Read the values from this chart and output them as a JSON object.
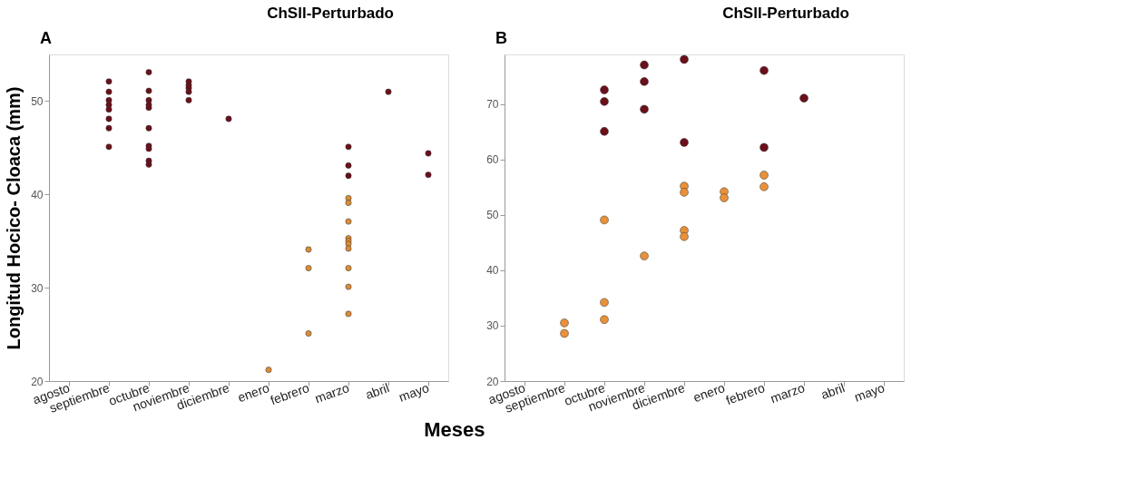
{
  "chart_data": [
    {
      "type": "scatter",
      "title": "ChSll-Perturbado",
      "annotations": [
        "A"
      ],
      "xlabel": "Meses",
      "ylabel": "Longitud Hocico- Cloaca (mm)",
      "categories": [
        "agosto",
        "septiembre",
        "octubre",
        "noviembre",
        "diciembre",
        "enero",
        "febrero",
        "marzo",
        "abril",
        "mayo"
      ],
      "ylim": [
        20,
        55
      ],
      "yticks": [
        20,
        30,
        40,
        50
      ],
      "grid": false,
      "marker": "circle",
      "series": [
        {
          "color": "#6b0f1a",
          "x": [
            "septiembre",
            "septiembre",
            "septiembre",
            "septiembre",
            "septiembre",
            "septiembre",
            "septiembre",
            "septiembre",
            "octubre",
            "octubre",
            "octubre",
            "octubre",
            "octubre",
            "octubre",
            "octubre",
            "octubre",
            "octubre",
            "octubre",
            "noviembre",
            "noviembre",
            "noviembre",
            "noviembre",
            "noviembre",
            "diciembre",
            "marzo",
            "marzo",
            "marzo",
            "abril",
            "mayo",
            "mayo"
          ],
          "values": [
            52.1,
            51.0,
            50.1,
            49.6,
            49.1,
            48.1,
            47.1,
            45.1,
            53.1,
            51.1,
            50.1,
            49.6,
            49.3,
            47.1,
            45.2,
            44.9,
            43.6,
            43.2,
            52.1,
            51.7,
            51.4,
            51.0,
            50.1,
            48.1,
            45.1,
            43.1,
            42.0,
            51.0,
            44.4,
            42.1
          ]
        },
        {
          "color": "#d98c3a",
          "x": [
            "enero",
            "febrero",
            "febrero",
            "febrero",
            "marzo",
            "marzo",
            "marzo",
            "marzo",
            "marzo",
            "marzo",
            "marzo",
            "marzo",
            "marzo",
            "marzo"
          ],
          "values": [
            21.2,
            34.1,
            32.1,
            25.1,
            39.6,
            39.1,
            37.1,
            35.3,
            35.0,
            34.7,
            34.2,
            32.1,
            30.1,
            27.2
          ]
        }
      ]
    },
    {
      "type": "scatter",
      "title": "ChSll-Perturbado",
      "annotations": [
        "B"
      ],
      "categories": [
        "agosto",
        "septiembre",
        "octubre",
        "noviembre",
        "diciembre",
        "enero",
        "febrero",
        "marzo",
        "abril",
        "mayo"
      ],
      "ylim": [
        20,
        79
      ],
      "yticks": [
        20,
        30,
        40,
        50,
        60,
        70
      ],
      "grid": false,
      "marker": "circle",
      "series": [
        {
          "color": "#6b0f1a",
          "x": [
            "octubre",
            "octubre",
            "octubre",
            "noviembre",
            "noviembre",
            "noviembre",
            "diciembre",
            "diciembre",
            "febrero",
            "febrero",
            "marzo"
          ],
          "values": [
            72.6,
            70.5,
            65.1,
            77.1,
            74.1,
            69.1,
            78.1,
            63.1,
            76.1,
            62.2,
            71.1
          ]
        },
        {
          "color": "#e8913a",
          "x": [
            "septiembre",
            "septiembre",
            "octubre",
            "octubre",
            "octubre",
            "noviembre",
            "diciembre",
            "diciembre",
            "diciembre",
            "diciembre",
            "enero",
            "enero",
            "febrero",
            "febrero"
          ],
          "values": [
            30.5,
            28.6,
            49.1,
            34.2,
            31.1,
            42.6,
            55.2,
            54.1,
            47.2,
            46.1,
            54.2,
            53.1,
            57.2,
            55.1
          ]
        }
      ]
    }
  ]
}
